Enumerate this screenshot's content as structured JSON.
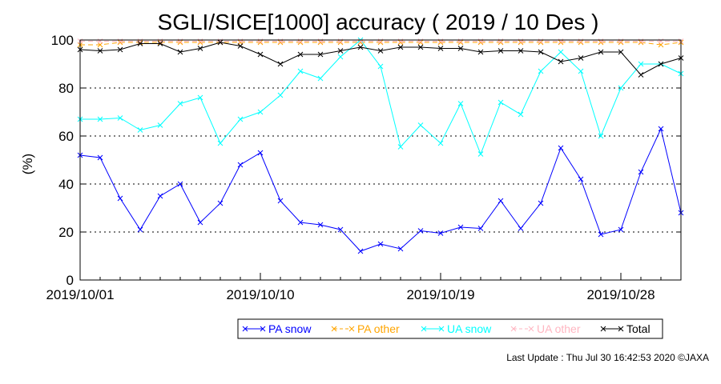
{
  "chart_data": {
    "type": "line",
    "title": "SGLI/SICE[1000] accuracy ( 2019 / 10 Des )",
    "xlabel": "",
    "ylabel": "(%)",
    "ylim": [
      0,
      100
    ],
    "y_ticks": [
      "0",
      "20",
      "40",
      "60",
      "80",
      "100"
    ],
    "x_tick_labels": [
      "2019/10/01",
      "2019/10/10",
      "2019/10/19",
      "2019/10/28"
    ],
    "x_tick_days": [
      1,
      10,
      19,
      28
    ],
    "x": [
      "2019/10/01",
      "2019/10/02",
      "2019/10/03",
      "2019/10/04",
      "2019/10/05",
      "2019/10/06",
      "2019/10/07",
      "2019/10/08",
      "2019/10/09",
      "2019/10/10",
      "2019/10/11",
      "2019/10/12",
      "2019/10/13",
      "2019/10/14",
      "2019/10/15",
      "2019/10/16",
      "2019/10/17",
      "2019/10/18",
      "2019/10/19",
      "2019/10/20",
      "2019/10/21",
      "2019/10/22",
      "2019/10/23",
      "2019/10/24",
      "2019/10/25",
      "2019/10/26",
      "2019/10/27",
      "2019/10/28",
      "2019/10/29",
      "2019/10/30",
      "2019/10/31"
    ],
    "grid": true,
    "legend_position": "bottom",
    "series": [
      {
        "name": "PA snow",
        "color": "#0000ff",
        "style": "solid",
        "values": [
          52,
          51,
          34,
          21,
          35,
          40,
          24,
          32,
          48,
          53,
          33,
          24,
          23,
          21,
          12,
          15,
          13,
          20.5,
          19.5,
          22,
          21.5,
          33,
          21.5,
          32,
          55,
          42,
          19,
          21,
          45,
          63,
          28
        ]
      },
      {
        "name": "PA other",
        "color": "#ffa500",
        "style": "dashed",
        "values": [
          98,
          98,
          99,
          99,
          99,
          99,
          99,
          99,
          99,
          99,
          99,
          99,
          99,
          99,
          99,
          99,
          99,
          99,
          99,
          99,
          99,
          99,
          99,
          99,
          99,
          99,
          99,
          99,
          99,
          98,
          99
        ]
      },
      {
        "name": "UA snow",
        "color": "#00ffff",
        "style": "solid",
        "values": [
          67,
          67,
          67.5,
          62.5,
          64.5,
          73.5,
          76,
          57,
          67,
          70,
          77,
          87,
          84,
          93,
          100,
          89,
          55.5,
          64.5,
          57,
          73.5,
          52.5,
          74,
          69,
          87,
          95,
          87,
          60,
          80,
          90,
          90,
          86
        ]
      },
      {
        "name": "UA other",
        "color": "#ffb6c1",
        "style": "dashed",
        "values": [
          99.5,
          99.5,
          99.5,
          99.5,
          99.5,
          99.5,
          99.5,
          99.5,
          99.5,
          99.5,
          99.5,
          99.5,
          99.5,
          99.5,
          99.5,
          99.5,
          99.5,
          99.5,
          99.5,
          99.5,
          99.5,
          99.5,
          99.5,
          99.5,
          99.5,
          99.5,
          99.5,
          99.5,
          99.5,
          99.5,
          99.5
        ]
      },
      {
        "name": "Total",
        "color": "#000000",
        "style": "solid",
        "values": [
          96,
          95.5,
          96,
          98.5,
          98.5,
          95,
          96.5,
          99,
          97.5,
          94,
          90,
          94,
          94,
          95.5,
          97,
          95.5,
          97,
          97,
          96.5,
          96.5,
          95,
          95.5,
          95.5,
          95,
          91,
          92.5,
          95,
          95,
          85.5,
          90,
          92.5
        ]
      }
    ]
  },
  "footer": {
    "last_update": "Last Update : Thu Jul 30 16:42:53 2020 ©JAXA"
  }
}
